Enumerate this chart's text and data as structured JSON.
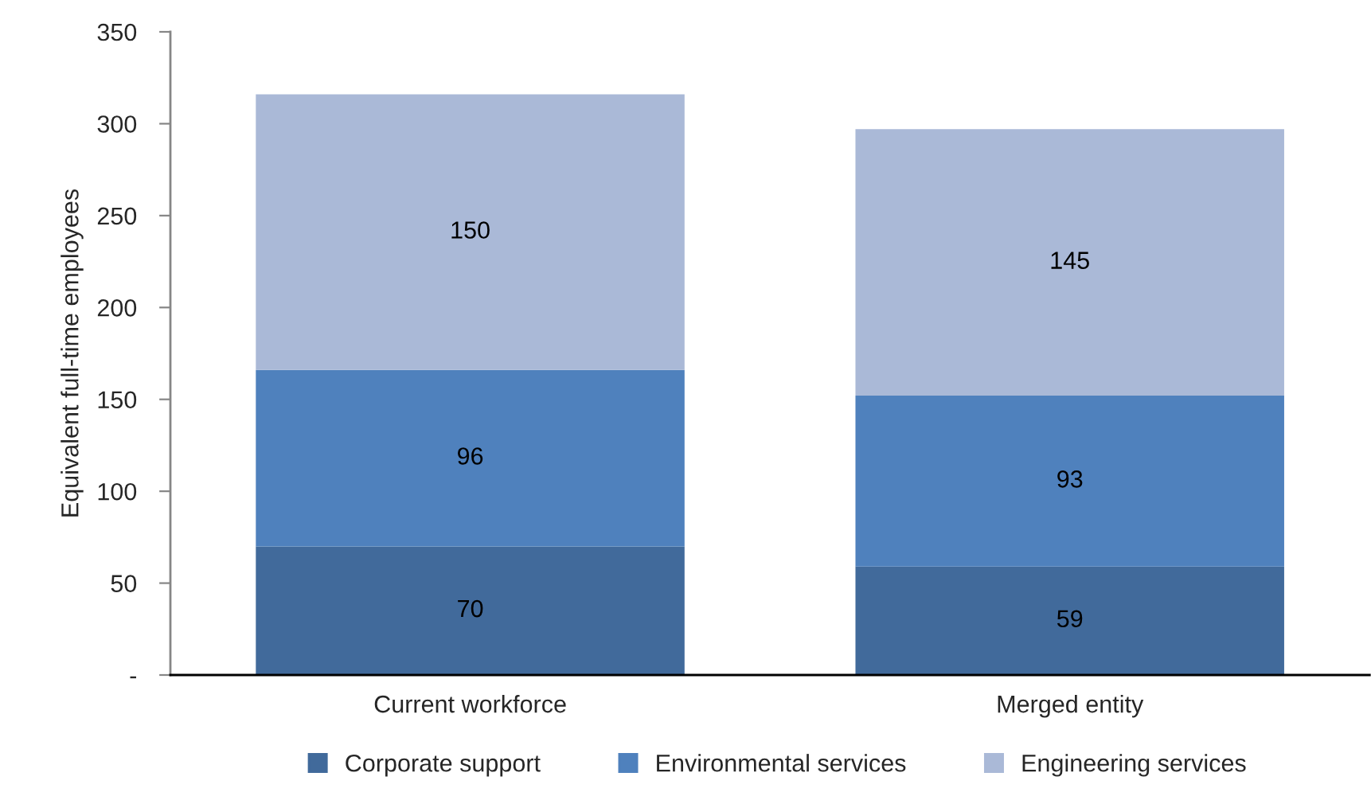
{
  "chart_data": {
    "type": "bar",
    "stacked": true,
    "categories": [
      "Current workforce",
      "Merged entity"
    ],
    "series": [
      {
        "name": "Corporate support",
        "color": "#416a9b",
        "values": [
          70,
          59
        ]
      },
      {
        "name": "Environmental services",
        "color": "#4f81bd",
        "values": [
          96,
          93
        ]
      },
      {
        "name": "Engineering services",
        "color": "#aab9d7",
        "values": [
          150,
          145
        ]
      }
    ],
    "ylabel": "Equivalent full-time employees",
    "ylim": [
      0,
      350
    ],
    "yticks": [
      {
        "value": 0,
        "label": "-"
      },
      50,
      100,
      150,
      200,
      250,
      300,
      350
    ],
    "data_labels": true,
    "grid": false,
    "legend": "bottom"
  }
}
